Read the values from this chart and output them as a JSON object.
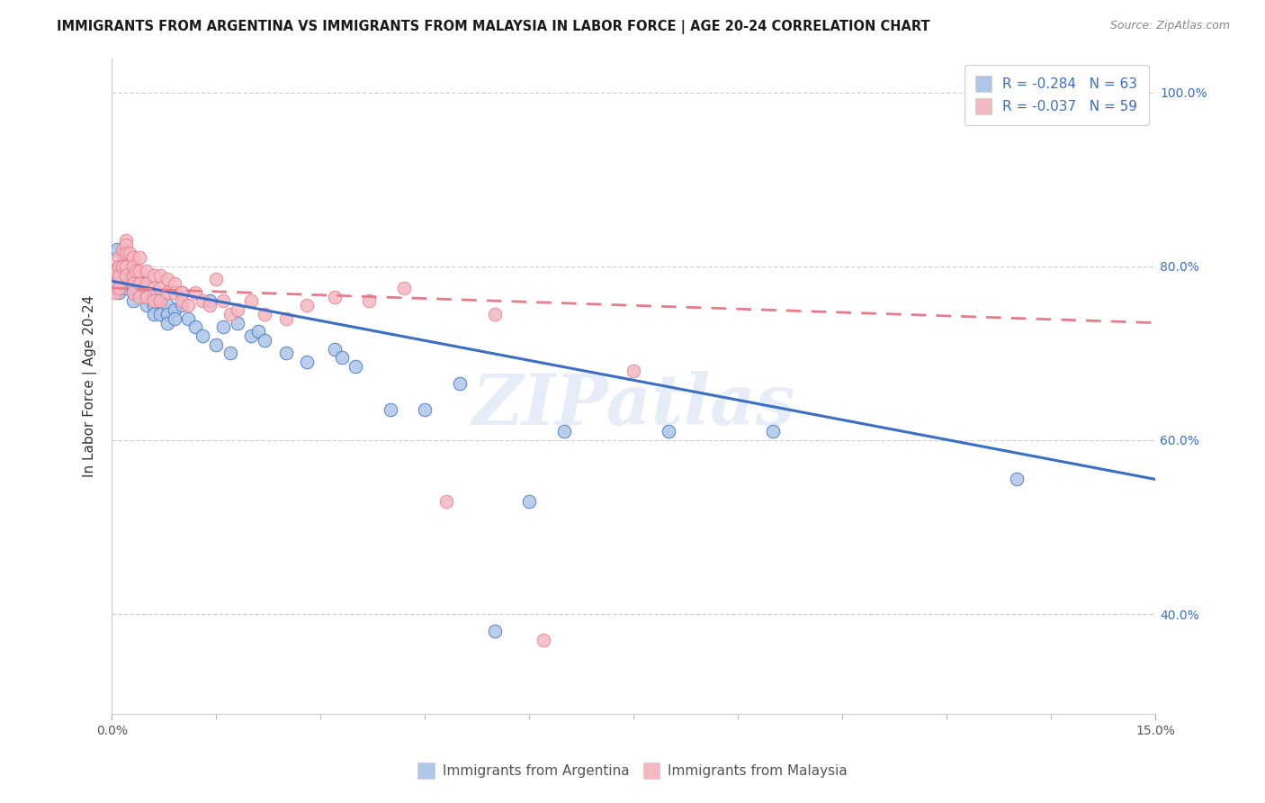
{
  "title": "IMMIGRANTS FROM ARGENTINA VS IMMIGRANTS FROM MALAYSIA IN LABOR FORCE | AGE 20-24 CORRELATION CHART",
  "source": "Source: ZipAtlas.com",
  "ylabel": "In Labor Force | Age 20-24",
  "yticks": [
    0.4,
    0.6,
    0.8,
    1.0
  ],
  "ytick_labels": [
    "40.0%",
    "60.0%",
    "80.0%",
    "100.0%"
  ],
  "xmin": 0.0,
  "xmax": 0.15,
  "ymin": 0.285,
  "ymax": 1.04,
  "legend_r_argentina": "-0.284",
  "legend_n_argentina": "63",
  "legend_r_malaysia": "-0.037",
  "legend_n_malaysia": "59",
  "color_argentina": "#aec6e8",
  "color_malaysia": "#f4b8c1",
  "line_color_argentina": "#3a6fc4",
  "line_color_malaysia": "#e87a8a",
  "watermark": "ZIPatlas",
  "argentina_x": [
    0.0005,
    0.0005,
    0.0008,
    0.001,
    0.001,
    0.001,
    0.0015,
    0.0015,
    0.002,
    0.002,
    0.002,
    0.002,
    0.0025,
    0.003,
    0.003,
    0.003,
    0.003,
    0.003,
    0.0035,
    0.004,
    0.004,
    0.004,
    0.0045,
    0.005,
    0.005,
    0.005,
    0.006,
    0.006,
    0.006,
    0.007,
    0.007,
    0.008,
    0.008,
    0.008,
    0.009,
    0.009,
    0.01,
    0.01,
    0.011,
    0.012,
    0.013,
    0.014,
    0.015,
    0.016,
    0.017,
    0.018,
    0.02,
    0.021,
    0.022,
    0.025,
    0.028,
    0.032,
    0.033,
    0.035,
    0.04,
    0.045,
    0.05,
    0.055,
    0.06,
    0.065,
    0.08,
    0.095,
    0.13
  ],
  "argentina_y": [
    0.795,
    0.78,
    0.82,
    0.8,
    0.775,
    0.77,
    0.815,
    0.8,
    0.795,
    0.79,
    0.785,
    0.775,
    0.8,
    0.79,
    0.785,
    0.775,
    0.77,
    0.76,
    0.795,
    0.785,
    0.775,
    0.77,
    0.78,
    0.775,
    0.765,
    0.755,
    0.765,
    0.755,
    0.745,
    0.76,
    0.745,
    0.755,
    0.745,
    0.735,
    0.75,
    0.74,
    0.77,
    0.755,
    0.74,
    0.73,
    0.72,
    0.76,
    0.71,
    0.73,
    0.7,
    0.735,
    0.72,
    0.725,
    0.715,
    0.7,
    0.69,
    0.705,
    0.695,
    0.685,
    0.635,
    0.635,
    0.665,
    0.38,
    0.53,
    0.61,
    0.61,
    0.61,
    0.555
  ],
  "malaysia_x": [
    0.0005,
    0.0005,
    0.0005,
    0.001,
    0.001,
    0.001,
    0.001,
    0.0015,
    0.0015,
    0.002,
    0.002,
    0.002,
    0.002,
    0.002,
    0.0025,
    0.003,
    0.003,
    0.003,
    0.003,
    0.003,
    0.0035,
    0.004,
    0.004,
    0.004,
    0.004,
    0.005,
    0.005,
    0.005,
    0.006,
    0.006,
    0.006,
    0.007,
    0.007,
    0.007,
    0.008,
    0.008,
    0.009,
    0.009,
    0.01,
    0.01,
    0.011,
    0.012,
    0.013,
    0.014,
    0.015,
    0.016,
    0.017,
    0.018,
    0.02,
    0.022,
    0.025,
    0.028,
    0.032,
    0.037,
    0.042,
    0.048,
    0.055,
    0.062,
    0.075
  ],
  "malaysia_y": [
    0.795,
    0.78,
    0.77,
    0.81,
    0.8,
    0.79,
    0.775,
    0.82,
    0.8,
    0.83,
    0.825,
    0.815,
    0.8,
    0.79,
    0.815,
    0.81,
    0.8,
    0.79,
    0.78,
    0.77,
    0.795,
    0.81,
    0.795,
    0.78,
    0.765,
    0.795,
    0.78,
    0.765,
    0.79,
    0.775,
    0.76,
    0.79,
    0.775,
    0.76,
    0.785,
    0.77,
    0.78,
    0.77,
    0.77,
    0.76,
    0.755,
    0.77,
    0.76,
    0.755,
    0.785,
    0.76,
    0.745,
    0.75,
    0.76,
    0.745,
    0.74,
    0.755,
    0.765,
    0.76,
    0.775,
    0.53,
    0.745,
    0.37,
    0.68
  ],
  "line_arg_x0": 0.0,
  "line_arg_y0": 0.783,
  "line_arg_x1": 0.15,
  "line_arg_y1": 0.555,
  "line_mal_x0": 0.0,
  "line_mal_y0": 0.775,
  "line_mal_x1": 0.15,
  "line_mal_y1": 0.735
}
